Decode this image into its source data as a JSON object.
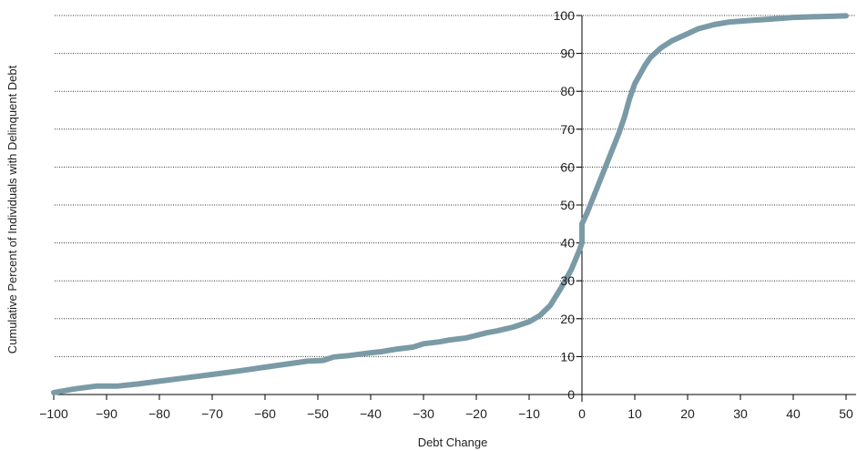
{
  "chart_data": {
    "type": "line",
    "title": "",
    "xlabel": "Debt Change",
    "ylabel": "Cumulative Percent of Individuals with Delinquent Debt",
    "xlim": [
      -100,
      50
    ],
    "ylim": [
      0,
      100
    ],
    "x_ticks": [
      -100,
      -90,
      -80,
      -70,
      -60,
      -50,
      -40,
      -30,
      -20,
      -10,
      0,
      10,
      20,
      30,
      40,
      50
    ],
    "y_ticks": [
      0,
      10,
      20,
      30,
      40,
      50,
      60,
      70,
      80,
      90,
      100
    ],
    "x_tick_labels": [
      "−100",
      "−90",
      "−80",
      "−70",
      "−60",
      "−50",
      "−40",
      "−30",
      "−20",
      "−10",
      "0",
      "10",
      "20",
      "30",
      "40",
      "50"
    ],
    "y_tick_labels": [
      "0",
      "10",
      "20",
      "30",
      "40",
      "50",
      "60",
      "70",
      "80",
      "90",
      "100"
    ],
    "grid": "horizontal-dotted",
    "legend": "none",
    "colors": {
      "line": "#7a9aa6",
      "axis": "#000000",
      "grid": "#333333",
      "text": "#222222"
    },
    "series": [
      {
        "points": [
          [
            -100,
            0.5
          ],
          [
            -96,
            1.5
          ],
          [
            -92,
            2.2
          ],
          [
            -88,
            2.2
          ],
          [
            -84,
            2.8
          ],
          [
            -80,
            3.5
          ],
          [
            -75,
            4.4
          ],
          [
            -70,
            5.3
          ],
          [
            -65,
            6.2
          ],
          [
            -60,
            7.2
          ],
          [
            -55,
            8.2
          ],
          [
            -52,
            8.8
          ],
          [
            -49,
            9.0
          ],
          [
            -47,
            9.9
          ],
          [
            -44,
            10.3
          ],
          [
            -40,
            11.0
          ],
          [
            -38,
            11.3
          ],
          [
            -35,
            12.0
          ],
          [
            -32,
            12.5
          ],
          [
            -30,
            13.4
          ],
          [
            -27,
            13.9
          ],
          [
            -25,
            14.4
          ],
          [
            -22,
            14.9
          ],
          [
            -20,
            15.6
          ],
          [
            -18,
            16.3
          ],
          [
            -16,
            16.8
          ],
          [
            -13,
            17.8
          ],
          [
            -10,
            19.2
          ],
          [
            -8,
            20.8
          ],
          [
            -6,
            23.5
          ],
          [
            -4,
            28
          ],
          [
            -2,
            33
          ],
          [
            -0.5,
            38
          ],
          [
            0,
            40
          ],
          [
            0,
            45
          ],
          [
            1,
            48
          ],
          [
            3,
            55
          ],
          [
            5,
            62
          ],
          [
            7,
            69
          ],
          [
            8,
            73
          ],
          [
            9,
            78
          ],
          [
            10,
            82
          ],
          [
            12,
            87
          ],
          [
            13,
            89
          ],
          [
            15,
            91.5
          ],
          [
            17,
            93.3
          ],
          [
            20,
            95.2
          ],
          [
            22,
            96.5
          ],
          [
            25,
            97.6
          ],
          [
            28,
            98.3
          ],
          [
            32,
            98.7
          ],
          [
            35,
            99.0
          ],
          [
            40,
            99.5
          ],
          [
            45,
            99.7
          ],
          [
            50,
            99.9
          ]
        ]
      }
    ]
  }
}
